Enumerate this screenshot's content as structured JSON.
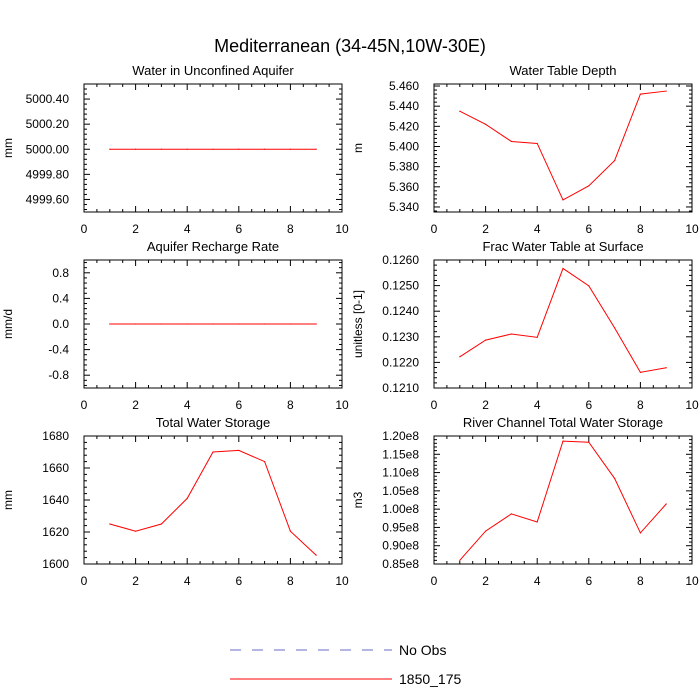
{
  "figure": {
    "title": "Mediterranean (34-45N,10W-30E)",
    "legend": [
      {
        "label": "No Obs",
        "color": "#6b6bc8",
        "style": "dashed"
      },
      {
        "label": "1850_175",
        "color": "#ff0000",
        "style": "solid"
      }
    ]
  },
  "chart_data": [
    {
      "type": "line",
      "title": "Water in Unconfined Aquifer",
      "xlabel": "",
      "ylabel": "mm",
      "xlim": [
        0,
        10
      ],
      "ylim": [
        4999.5,
        5000.52
      ],
      "xticks": [
        0,
        2,
        4,
        6,
        8,
        10
      ],
      "yticks": [
        4999.6,
        4999.8,
        5000.0,
        5000.2,
        5000.4
      ],
      "ytick_labels": [
        "4999.60",
        "4999.80",
        "5000.00",
        "5000.20",
        "5000.40"
      ],
      "series": [
        {
          "name": "1850_175",
          "color": "#ff0000",
          "x": [
            1,
            2,
            3,
            4,
            5,
            6,
            7,
            8,
            9
          ],
          "values": [
            5000.0,
            5000.0,
            5000.0,
            5000.0,
            5000.0,
            5000.0,
            5000.0,
            5000.0,
            5000.0
          ]
        }
      ]
    },
    {
      "type": "line",
      "title": "Water Table Depth",
      "xlabel": "",
      "ylabel": "m",
      "xlim": [
        0,
        10
      ],
      "ylim": [
        5.335,
        5.462
      ],
      "xticks": [
        0,
        2,
        4,
        6,
        8,
        10
      ],
      "yticks": [
        5.34,
        5.36,
        5.38,
        5.4,
        5.42,
        5.44,
        5.46
      ],
      "ytick_labels": [
        "5.340",
        "5.360",
        "5.380",
        "5.400",
        "5.420",
        "5.440",
        "5.460"
      ],
      "series": [
        {
          "name": "1850_175",
          "color": "#ff0000",
          "x": [
            1,
            2,
            3,
            4,
            5,
            6,
            7,
            8,
            9
          ],
          "values": [
            5.435,
            5.422,
            5.405,
            5.403,
            5.347,
            5.361,
            5.386,
            5.452,
            5.455
          ]
        }
      ]
    },
    {
      "type": "line",
      "title": "Aquifer Recharge Rate",
      "xlabel": "",
      "ylabel": "mm/d",
      "xlim": [
        0,
        10
      ],
      "ylim": [
        -1.0,
        1.0
      ],
      "xticks": [
        0,
        2,
        4,
        6,
        8,
        10
      ],
      "yticks": [
        -0.8,
        -0.4,
        0.0,
        0.4,
        0.8
      ],
      "ytick_labels": [
        "-0.8",
        "-0.4",
        "0.0",
        "0.4",
        "0.8"
      ],
      "series": [
        {
          "name": "1850_175",
          "color": "#ff0000",
          "x": [
            1,
            2,
            3,
            4,
            5,
            6,
            7,
            8,
            9
          ],
          "values": [
            0,
            0,
            0,
            0,
            0,
            0,
            0,
            0,
            0
          ]
        }
      ]
    },
    {
      "type": "line",
      "title": "Frac Water Table at Surface",
      "xlabel": "",
      "ylabel": "unitless [0-1]",
      "xlim": [
        0,
        10
      ],
      "ylim": [
        0.121,
        0.126
      ],
      "xticks": [
        0,
        2,
        4,
        6,
        8,
        10
      ],
      "yticks": [
        0.121,
        0.122,
        0.123,
        0.124,
        0.125,
        0.126
      ],
      "ytick_labels": [
        "0.1210",
        "0.1220",
        "0.1230",
        "0.1240",
        "0.1250",
        "0.1260"
      ],
      "series": [
        {
          "name": "1850_175",
          "color": "#ff0000",
          "x": [
            1,
            2,
            3,
            4,
            5,
            6,
            7,
            8,
            9
          ],
          "values": [
            0.12222,
            0.12287,
            0.12311,
            0.12298,
            0.12567,
            0.12499,
            0.12335,
            0.12161,
            0.12179
          ]
        }
      ]
    },
    {
      "type": "line",
      "title": "Total Water Storage",
      "xlabel": "",
      "ylabel": "mm",
      "xlim": [
        0,
        10
      ],
      "ylim": [
        1600,
        1680
      ],
      "xticks": [
        0,
        2,
        4,
        6,
        8,
        10
      ],
      "yticks": [
        1600,
        1620,
        1640,
        1660,
        1680
      ],
      "ytick_labels": [
        "1600",
        "1620",
        "1640",
        "1660",
        "1680"
      ],
      "series": [
        {
          "name": "1850_175",
          "color": "#ff0000",
          "x": [
            1,
            2,
            3,
            4,
            5,
            6,
            7,
            8,
            9
          ],
          "values": [
            1625,
            1620.5,
            1625,
            1641,
            1670,
            1671,
            1664,
            1620.5,
            1605.5
          ]
        }
      ]
    },
    {
      "type": "line",
      "title": "River Channel Total Water Storage",
      "xlabel": "",
      "ylabel": "m3",
      "xlim": [
        0,
        10
      ],
      "ylim": [
        85000000.0,
        120000000.0
      ],
      "xticks": [
        0,
        2,
        4,
        6,
        8,
        10
      ],
      "yticks": [
        85000000.0,
        90000000.0,
        95000000.0,
        100000000.0,
        105000000.0,
        110000000.0,
        115000000.0,
        120000000.0
      ],
      "ytick_labels": [
        "0.85e8",
        "0.90e8",
        "0.95e8",
        "1.00e8",
        "1.05e8",
        "1.10e8",
        "1.15e8",
        "1.20e8"
      ],
      "series": [
        {
          "name": "1850_175",
          "color": "#ff0000",
          "x": [
            1,
            2,
            3,
            4,
            5,
            6,
            7,
            8,
            9
          ],
          "values": [
            86000000.0,
            94000000.0,
            98700000.0,
            96500000.0,
            118600000.0,
            118300000.0,
            108400000.0,
            93500000.0,
            101400000.0
          ]
        }
      ]
    }
  ]
}
